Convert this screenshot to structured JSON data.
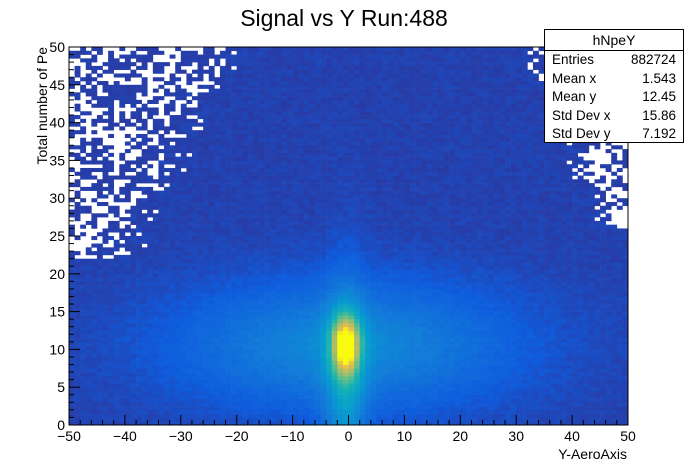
{
  "chart_data": {
    "type": "heatmap",
    "title": "Signal vs Y Run:488",
    "xlabel": "Y-AeroAxis",
    "ylabel": "Total number of Pe",
    "xlim": [
      -50,
      50
    ],
    "ylim": [
      0,
      50
    ],
    "x_ticks": [
      -50,
      -40,
      -30,
      -20,
      -10,
      0,
      10,
      20,
      30,
      40,
      50
    ],
    "y_ticks": [
      0,
      5,
      10,
      15,
      20,
      25,
      30,
      35,
      40,
      45,
      50
    ],
    "grid": false,
    "colormap": "kBird",
    "histogram_name": "hNpeY",
    "peak": {
      "x": -0.5,
      "y": 10.5
    },
    "core_width": {
      "x": 15.9,
      "y": 4.5
    },
    "stats": {
      "name": "hNpeY",
      "legend_position": "top-right",
      "rows": [
        {
          "label": "Entries",
          "value": "882724"
        },
        {
          "label": "Mean x",
          "value": "1.543"
        },
        {
          "label": "Mean y",
          "value": "12.45"
        },
        {
          "label": "Std Dev x",
          "value": "15.86"
        },
        {
          "label": "Std Dev y",
          "value": "7.192"
        }
      ]
    }
  },
  "colors": {
    "background": "#2c3d9e",
    "empty": "#ffffff",
    "peak": "#f9e425"
  }
}
